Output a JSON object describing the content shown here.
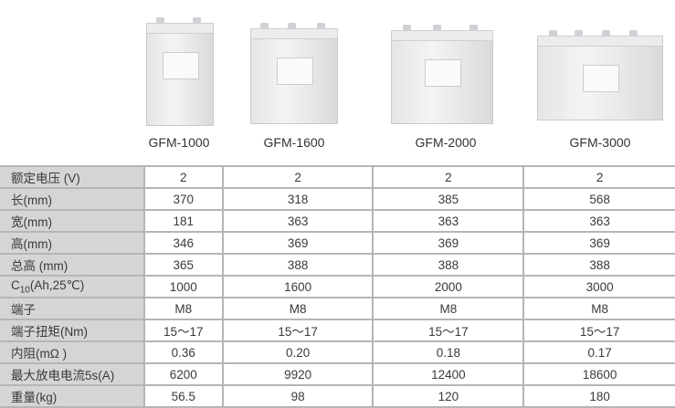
{
  "products": [
    {
      "model": "GFM-1000"
    },
    {
      "model": "GFM-1600"
    },
    {
      "model": "GFM-2000"
    },
    {
      "model": "GFM-3000"
    }
  ],
  "table": {
    "rows": [
      {
        "label": "额定电压 (V)",
        "values": [
          "2",
          "2",
          "2",
          "2"
        ]
      },
      {
        "label": "长(mm)",
        "values": [
          "370",
          "318",
          "385",
          "568"
        ]
      },
      {
        "label": "宽(mm)",
        "values": [
          "181",
          "363",
          "363",
          "363"
        ]
      },
      {
        "label": "高(mm)",
        "values": [
          "346",
          "369",
          "369",
          "369"
        ]
      },
      {
        "label": "总高 (mm)",
        "values": [
          "365",
          "388",
          "388",
          "388"
        ]
      },
      {
        "label_main": "C",
        "label_sub": "10",
        "label_rest": "(Ah,25℃)",
        "values": [
          "1000",
          "1600",
          "2000",
          "3000"
        ]
      },
      {
        "label": "端子",
        "values": [
          "M8",
          "M8",
          "M8",
          "M8"
        ]
      },
      {
        "label": "端子扭矩(Nm)",
        "values": [
          "15～17",
          "15～17",
          "15～17",
          "15～17"
        ]
      },
      {
        "label": "内阻(mΩ )",
        "values": [
          "0.36",
          "0.20",
          "0.18",
          "0.17"
        ]
      },
      {
        "label": "最大放电电流5s(A)",
        "values": [
          "6200",
          "9920",
          "12400",
          "18600"
        ]
      },
      {
        "label": "重量(kg)",
        "values": [
          "56.5",
          "98",
          "120",
          "180"
        ]
      }
    ]
  }
}
